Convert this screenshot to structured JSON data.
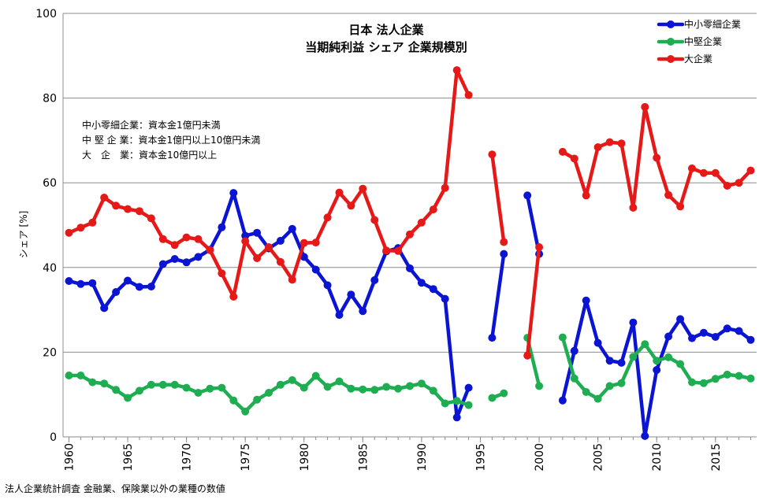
{
  "chart_data": {
    "type": "line",
    "title": [
      "日本 法人企業",
      "当期純利益 シェア 企業規模別"
    ],
    "ylabel": "シェア [%]",
    "xlabel": "",
    "ylim": [
      0,
      100
    ],
    "yticks": [
      0,
      20,
      40,
      60,
      80,
      100
    ],
    "xlim": [
      1959.5,
      2018.5
    ],
    "xticks": [
      1960,
      1965,
      1970,
      1975,
      1980,
      1985,
      1990,
      1995,
      2000,
      2005,
      2010,
      2015
    ],
    "grid": "horizontal",
    "legend_position": "top-right",
    "notes": [
      "中小零細企業：資本金1億円未満",
      "中 堅 企 業：資本金1億円以上10億円未満",
      "大　企　業：資本金10億円以上"
    ],
    "source": "法人企業統計調査 金融業、保険業以外の業種の数値",
    "x": [
      1960,
      1961,
      1962,
      1963,
      1964,
      1965,
      1966,
      1967,
      1968,
      1969,
      1970,
      1971,
      1972,
      1973,
      1974,
      1975,
      1976,
      1977,
      1978,
      1979,
      1980,
      1981,
      1982,
      1983,
      1984,
      1985,
      1986,
      1987,
      1988,
      1989,
      1990,
      1991,
      1992,
      1993,
      1994,
      1995,
      1996,
      1997,
      1998,
      1999,
      2000,
      2001,
      2002,
      2003,
      2004,
      2005,
      2006,
      2007,
      2008,
      2009,
      2010,
      2011,
      2012,
      2013,
      2014,
      2015,
      2016,
      2017,
      2018
    ],
    "series": [
      {
        "name": "中小零細企業",
        "color": "#0a14d2",
        "values": [
          36.8,
          36.1,
          36.3,
          30.4,
          34.2,
          36.9,
          35.4,
          35.5,
          40.8,
          42.0,
          41.2,
          42.5,
          44.2,
          49.5,
          57.6,
          47.5,
          48.2,
          44.5,
          46.3,
          49.1,
          42.5,
          39.5,
          35.8,
          28.8,
          33.6,
          29.7,
          37.0,
          43.8,
          44.6,
          39.8,
          36.4,
          34.9,
          32.6,
          4.6,
          11.6,
          null,
          23.4,
          43.2,
          null,
          57.0,
          43.2,
          null,
          8.6,
          20.3,
          32.2,
          22.2,
          18.0,
          17.5,
          27.0,
          0.2,
          15.8,
          23.7,
          27.8,
          23.3,
          24.6,
          23.6,
          25.6,
          25.0,
          22.9
        ]
      },
      {
        "name": "中堅企業",
        "color": "#1fad52",
        "values": [
          14.5,
          14.5,
          12.9,
          12.6,
          11.1,
          9.2,
          10.9,
          12.3,
          12.3,
          12.3,
          11.6,
          10.4,
          11.4,
          11.6,
          8.6,
          6.0,
          8.8,
          10.4,
          12.3,
          13.4,
          11.6,
          14.4,
          11.8,
          13.1,
          11.4,
          11.2,
          11.1,
          11.8,
          11.4,
          12.0,
          12.6,
          10.9,
          7.9,
          8.5,
          7.5,
          null,
          9.2,
          10.3,
          null,
          23.4,
          12.0,
          null,
          23.5,
          13.8,
          10.6,
          9.0,
          12.0,
          12.7,
          18.9,
          21.9,
          18.0,
          18.8,
          17.2,
          12.9,
          12.7,
          13.7,
          14.7,
          14.4,
          13.8
        ]
      },
      {
        "name": "大企業",
        "color": "#e61919",
        "values": [
          48.2,
          49.4,
          50.6,
          56.5,
          54.6,
          53.8,
          53.3,
          51.6,
          46.7,
          45.3,
          47.1,
          46.7,
          44.1,
          38.6,
          33.1,
          46.2,
          42.2,
          44.8,
          41.3,
          37.1,
          45.8,
          45.9,
          51.8,
          57.7,
          54.6,
          58.6,
          51.2,
          44.0,
          43.9,
          47.8,
          50.6,
          53.7,
          58.8,
          86.6,
          80.7,
          null,
          66.7,
          46.0,
          null,
          19.2,
          44.8,
          null,
          67.3,
          65.7,
          57.0,
          68.4,
          69.6,
          69.3,
          54.1,
          77.9,
          65.9,
          57.1,
          54.4,
          63.4,
          62.3,
          62.3,
          59.3,
          60.0,
          62.9
        ]
      }
    ]
  }
}
